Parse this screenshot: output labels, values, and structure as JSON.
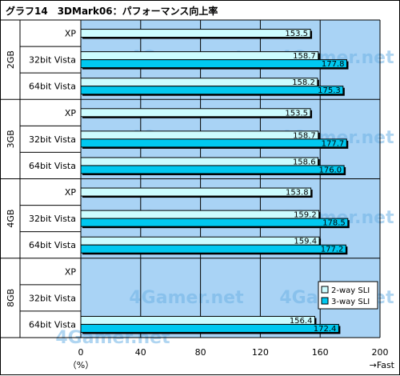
{
  "chart_data": {
    "type": "bar",
    "orientation": "horizontal",
    "title": "グラフ14　3DMark06：パフォーマンス向上率",
    "groups": [
      {
        "label": "2GB",
        "rows": [
          {
            "label": "XP",
            "values": [
              153.5,
              null
            ]
          },
          {
            "label": "32bit Vista",
            "values": [
              158.7,
              177.8
            ]
          },
          {
            "label": "64bit Vista",
            "values": [
              158.2,
              175.3
            ]
          }
        ]
      },
      {
        "label": "3GB",
        "rows": [
          {
            "label": "XP",
            "values": [
              153.5,
              null
            ]
          },
          {
            "label": "32bit Vista",
            "values": [
              158.7,
              177.7
            ]
          },
          {
            "label": "64bit Vista",
            "values": [
              158.6,
              176.0
            ]
          }
        ]
      },
      {
        "label": "4GB",
        "rows": [
          {
            "label": "XP",
            "values": [
              153.8,
              null
            ]
          },
          {
            "label": "32bit Vista",
            "values": [
              159.2,
              178.5
            ]
          },
          {
            "label": "64bit Vista",
            "values": [
              159.4,
              177.2
            ]
          }
        ]
      },
      {
        "label": "8GB",
        "rows": [
          {
            "label": "XP",
            "values": [
              null,
              null
            ]
          },
          {
            "label": "32bit Vista",
            "values": [
              null,
              null
            ]
          },
          {
            "label": "64bit Vista",
            "values": [
              156.4,
              172.4
            ]
          }
        ]
      }
    ],
    "series": [
      {
        "name": "2-way SLI",
        "color": "#cdfcff"
      },
      {
        "name": "3-way SLI",
        "color": "#00c8f0"
      }
    ],
    "x_ticks": [
      "0",
      "40",
      "80",
      "120",
      "160",
      "200"
    ],
    "xlim": [
      0,
      200
    ],
    "x_unit": "（%）",
    "x_direction": "→Fast",
    "watermark": "4Gamer.net",
    "legend_position": "bottom-right",
    "grid": true,
    "colors": {
      "plot_background": "#a9d3f5",
      "gridline": "#000000"
    }
  }
}
